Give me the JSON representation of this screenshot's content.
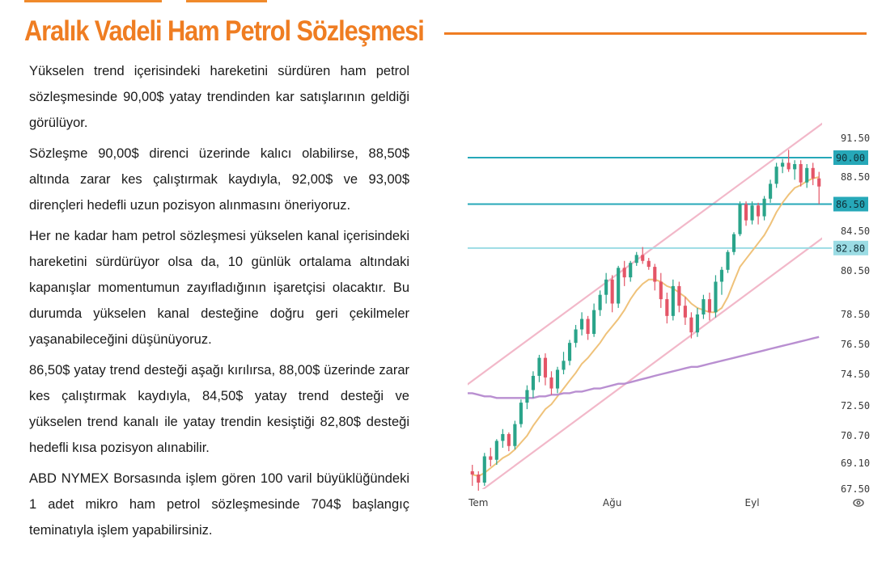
{
  "header": {
    "title": "Aralık Vadeli Ham Petrol Sözleşmesi"
  },
  "article": {
    "paragraphs": [
      "Yükselen trend içerisindeki hareketini sürdüren ham petrol sözleşmesinde 90,00$ yatay trendinden kar satışlarının geldiği görülüyor.",
      "Sözleşme 90,00$ direnci üzerinde kalıcı olabilirse, 88,50$ altında zarar kes çalıştırmak kaydıyla, 92,00$ ve 93,00$ dirençleri hedefli uzun pozisyon alınmasını öneriyoruz.",
      "Her ne kadar ham petrol sözleşmesi yükselen kanal içerisindeki hareketini sürdürüyor olsa da, 10 günlük ortalama altındaki kapanışlar momentumun zayıfladığının işaretçisi olacaktır. Bu durumda yükselen kanal desteğine doğru geri çekilmeler yaşanabileceğini düşünüyoruz.",
      "86,50$ yatay trend desteği aşağı kırılırsa, 88,00$ üzerinde zarar kes çalıştırmak kaydıyla, 84,50$ yatay trend desteği ve yükselen trend kanalı ile yatay trendin kesiştiği 82,80$ desteği hedefli kısa pozisyon alınabilir.",
      "ABD NYMEX Borsasında işlem gören 100 varil büyüklüğündeki 1 adet mikro ham petrol sözleşmesinde 704$ başlangıç teminatıyla işlem yapabilirsiniz."
    ]
  },
  "chart_data": {
    "type": "candlestick",
    "y_ticks": [
      "91.50",
      "88.50",
      "84.50",
      "80.50",
      "78.50",
      "76.50",
      "74.50",
      "72.50",
      "70.70",
      "69.10",
      "67.50"
    ],
    "y_tick_values": [
      91.5,
      88.5,
      84.5,
      80.5,
      78.5,
      76.5,
      74.5,
      72.5,
      70.7,
      69.1,
      67.5
    ],
    "ylim": [
      67.5,
      91.5
    ],
    "x_labels": [
      "Tem",
      "Ağu",
      "Eyl"
    ],
    "x_label_index": [
      1,
      23,
      46
    ],
    "horizontal_levels": [
      {
        "label": "90.00",
        "value": 90.0,
        "color": "#26a8b8",
        "badge": "#26a8b8"
      },
      {
        "label": "86.50",
        "value": 86.5,
        "color": "#26a8b8",
        "badge": "#26a8b8"
      },
      {
        "label": "82.80",
        "value": 82.8,
        "color": "#9bdce4",
        "badge": "#9bdce4"
      }
    ],
    "ohlc": [
      [
        68.6,
        69.0,
        67.7,
        68.4
      ],
      [
        68.4,
        68.6,
        67.4,
        67.9
      ],
      [
        67.9,
        69.7,
        67.7,
        69.5
      ],
      [
        69.5,
        70.0,
        68.9,
        69.3
      ],
      [
        69.3,
        70.5,
        69.0,
        70.4
      ],
      [
        70.4,
        71.1,
        70.0,
        70.8
      ],
      [
        70.8,
        70.9,
        69.8,
        70.1
      ],
      [
        70.1,
        71.6,
        69.9,
        71.4
      ],
      [
        71.4,
        72.9,
        71.2,
        72.7
      ],
      [
        72.7,
        73.8,
        72.3,
        73.5
      ],
      [
        73.5,
        74.7,
        73.0,
        74.4
      ],
      [
        74.4,
        75.8,
        74.0,
        75.6
      ],
      [
        75.6,
        75.9,
        73.8,
        74.3
      ],
      [
        74.3,
        74.7,
        73.2,
        73.6
      ],
      [
        73.6,
        75.0,
        73.3,
        74.8
      ],
      [
        74.8,
        76.0,
        74.5,
        75.4
      ],
      [
        75.4,
        76.8,
        75.1,
        76.6
      ],
      [
        76.6,
        77.8,
        76.3,
        77.5
      ],
      [
        77.5,
        78.6,
        77.1,
        78.2
      ],
      [
        78.2,
        78.4,
        76.8,
        77.2
      ],
      [
        77.2,
        79.0,
        77.0,
        78.7
      ],
      [
        78.7,
        79.6,
        78.4,
        79.4
      ],
      [
        79.4,
        80.4,
        79.0,
        80.1
      ],
      [
        80.1,
        80.3,
        78.6,
        79.0
      ],
      [
        79.0,
        81.0,
        78.8,
        80.8
      ],
      [
        80.8,
        81.5,
        79.8,
        80.2
      ],
      [
        80.2,
        81.5,
        80.0,
        81.3
      ],
      [
        81.3,
        82.4,
        81.0,
        82.1
      ],
      [
        82.1,
        82.9,
        81.2,
        81.5
      ],
      [
        81.5,
        81.8,
        80.6,
        80.9
      ],
      [
        80.9,
        81.2,
        79.6,
        80.0
      ],
      [
        80.0,
        80.4,
        78.8,
        79.2
      ],
      [
        79.2,
        79.5,
        77.9,
        78.4
      ],
      [
        78.4,
        80.1,
        78.1,
        79.8
      ],
      [
        79.8,
        80.0,
        78.6,
        78.9
      ],
      [
        78.9,
        79.3,
        77.8,
        78.3
      ],
      [
        78.3,
        78.6,
        76.9,
        77.3
      ],
      [
        77.3,
        78.8,
        77.0,
        78.5
      ],
      [
        78.5,
        79.4,
        78.2,
        79.2
      ],
      [
        79.2,
        79.5,
        78.1,
        78.6
      ],
      [
        78.6,
        80.3,
        78.3,
        80.0
      ],
      [
        80.0,
        80.9,
        79.4,
        80.6
      ],
      [
        80.6,
        82.6,
        80.4,
        82.4
      ],
      [
        82.4,
        84.4,
        82.1,
        84.2
      ],
      [
        84.2,
        86.7,
        84.0,
        86.5
      ],
      [
        86.5,
        86.7,
        84.9,
        85.3
      ],
      [
        85.3,
        86.7,
        85.0,
        86.4
      ],
      [
        86.4,
        86.6,
        85.0,
        85.6
      ],
      [
        85.6,
        87.1,
        85.3,
        86.9
      ],
      [
        86.9,
        88.3,
        86.6,
        88.0
      ],
      [
        88.0,
        89.6,
        87.7,
        89.3
      ],
      [
        89.3,
        89.9,
        88.8,
        89.6
      ],
      [
        89.6,
        90.6,
        88.9,
        89.1
      ],
      [
        89.1,
        89.8,
        88.3,
        89.5
      ],
      [
        89.5,
        89.8,
        87.8,
        88.1
      ],
      [
        88.1,
        89.5,
        87.7,
        89.2
      ],
      [
        89.2,
        89.6,
        87.9,
        88.4
      ],
      [
        88.4,
        88.9,
        86.5,
        87.8
      ]
    ],
    "series": [
      {
        "kind": "ma10",
        "color": "#efc27a",
        "values": [
          68.4,
          68.3,
          68.5,
          68.8,
          69.1,
          69.4,
          69.6,
          69.9,
          70.3,
          70.7,
          71.3,
          71.8,
          72.3,
          72.6,
          73.1,
          73.6,
          74.1,
          74.6,
          75.2,
          75.6,
          76.1,
          76.6,
          77.2,
          77.7,
          78.2,
          78.7,
          79.2,
          79.6,
          79.9,
          80.1,
          80.1,
          80.0,
          79.8,
          79.7,
          79.5,
          79.3,
          79.0,
          78.8,
          78.7,
          78.6,
          78.6,
          78.8,
          79.3,
          80.0,
          80.9,
          81.7,
          82.5,
          83.3,
          84.1,
          85.0,
          85.9,
          86.6,
          87.2,
          87.7,
          87.9,
          88.2,
          88.4,
          88.5
        ]
      },
      {
        "kind": "ma200",
        "color": "#b98fd1",
        "values": [
          73.3,
          73.2,
          73.1,
          73.1,
          73.0,
          73.0,
          73.0,
          73.0,
          73.0,
          73.0,
          73.0,
          73.1,
          73.1,
          73.2,
          73.2,
          73.3,
          73.3,
          73.4,
          73.4,
          73.5,
          73.6,
          73.6,
          73.7,
          73.8,
          73.9,
          73.9,
          74.0,
          74.1,
          74.2,
          74.3,
          74.4,
          74.5,
          74.6,
          74.7,
          74.8,
          74.9,
          75.0,
          75.0,
          75.1,
          75.2,
          75.3,
          75.4,
          75.5,
          75.6,
          75.7,
          75.8,
          75.9,
          76.0,
          76.1,
          76.2,
          76.3,
          76.4,
          76.5,
          76.6,
          76.7,
          76.8,
          76.9,
          77.0
        ]
      }
    ],
    "channel": {
      "color": "#f2b8c9",
      "upper": [
        [
          -1,
          73.8
        ],
        [
          58,
          92.8
        ]
      ],
      "lower": [
        [
          0,
          67.0
        ],
        [
          58,
          84.0
        ]
      ]
    },
    "colors": {
      "up": "#2aa48a",
      "down": "#e45567"
    }
  },
  "icons": {
    "settings": "settings-icon"
  }
}
